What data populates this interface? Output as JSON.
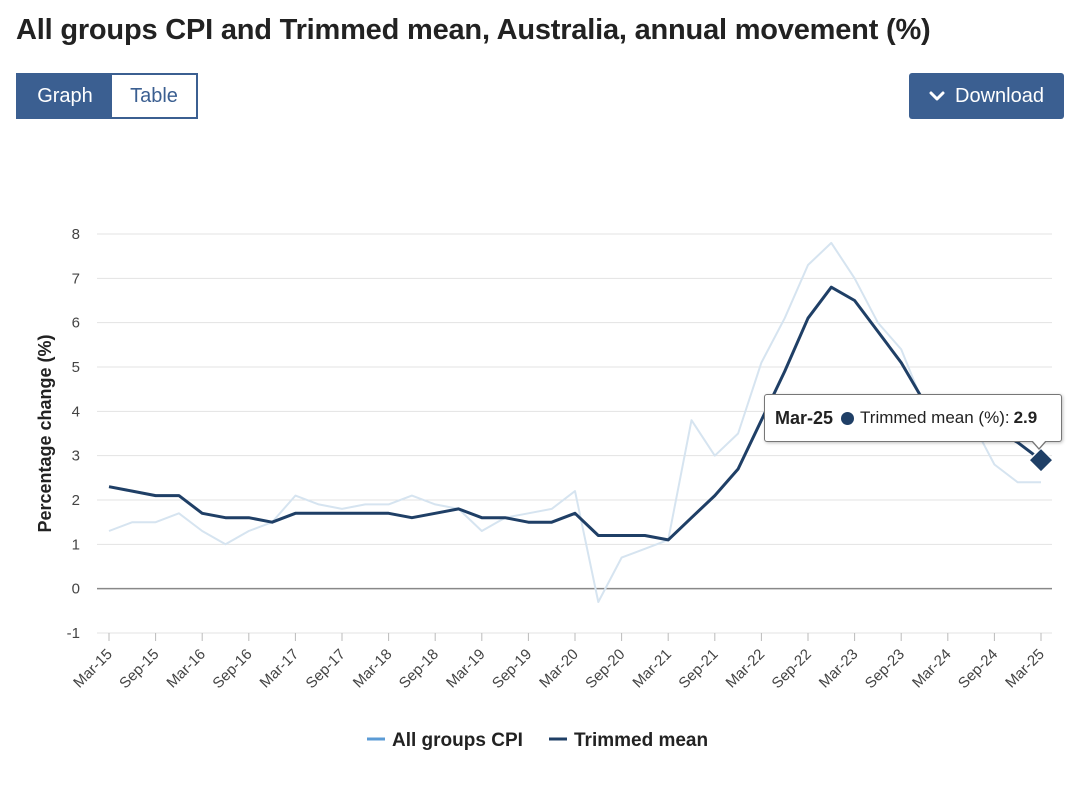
{
  "page": {
    "title": "All groups CPI and Trimmed mean, Australia, annual movement (%)"
  },
  "controls": {
    "graph_label": "Graph",
    "table_label": "Table",
    "download_label": "Download",
    "download_icon": "chevron-down-icon"
  },
  "tooltip": {
    "date": "Mar-25",
    "series": "Trimmed mean (%):",
    "value": "2.9"
  },
  "chart_data": {
    "type": "line",
    "ylabel": "Percentage change (%)",
    "xlabel": "",
    "ylim": [
      -1,
      8
    ],
    "yticks": [
      "8",
      "7",
      "6",
      "5",
      "4",
      "3",
      "2",
      "1",
      "0",
      "-1"
    ],
    "grid": true,
    "legend_position": "bottom",
    "x": [
      "Mar-15",
      "Jun-15",
      "Sep-15",
      "Dec-15",
      "Mar-16",
      "Jun-16",
      "Sep-16",
      "Dec-16",
      "Mar-17",
      "Jun-17",
      "Sep-17",
      "Dec-17",
      "Mar-18",
      "Jun-18",
      "Sep-18",
      "Dec-18",
      "Mar-19",
      "Jun-19",
      "Sep-19",
      "Dec-19",
      "Mar-20",
      "Jun-20",
      "Sep-20",
      "Dec-20",
      "Mar-21",
      "Jun-21",
      "Sep-21",
      "Dec-21",
      "Mar-22",
      "Jun-22",
      "Sep-22",
      "Dec-22",
      "Mar-23",
      "Jun-23",
      "Sep-23",
      "Dec-23",
      "Mar-24",
      "Jun-24",
      "Sep-24",
      "Dec-24",
      "Mar-25"
    ],
    "x_tick_labels": [
      "Mar-15",
      "Sep-15",
      "Mar-16",
      "Sep-16",
      "Mar-17",
      "Sep-17",
      "Mar-18",
      "Sep-18",
      "Mar-19",
      "Sep-19",
      "Mar-20",
      "Sep-20",
      "Mar-21",
      "Sep-21",
      "Mar-22",
      "Sep-22",
      "Mar-23",
      "Sep-23",
      "Mar-24",
      "Sep-24",
      "Mar-25"
    ],
    "series": [
      {
        "name": "All groups CPI",
        "color": "#d6e4f0",
        "legend_color": "#5b9bd5",
        "values": [
          1.3,
          1.5,
          1.5,
          1.7,
          1.3,
          1.0,
          1.3,
          1.5,
          2.1,
          1.9,
          1.8,
          1.9,
          1.9,
          2.1,
          1.9,
          1.8,
          1.3,
          1.6,
          1.7,
          1.8,
          2.2,
          -0.3,
          0.7,
          0.9,
          1.1,
          3.8,
          3.0,
          3.5,
          5.1,
          6.1,
          7.3,
          7.8,
          7.0,
          6.0,
          5.4,
          4.1,
          3.6,
          3.8,
          2.8,
          2.4,
          2.4
        ]
      },
      {
        "name": "Trimmed mean",
        "color": "#1f3f66",
        "legend_color": "#1f3f66",
        "values": [
          2.3,
          2.2,
          2.1,
          2.1,
          1.7,
          1.6,
          1.6,
          1.5,
          1.7,
          1.7,
          1.7,
          1.7,
          1.7,
          1.6,
          1.7,
          1.8,
          1.6,
          1.6,
          1.5,
          1.5,
          1.7,
          1.2,
          1.2,
          1.2,
          1.1,
          1.6,
          2.1,
          2.7,
          3.8,
          4.9,
          6.1,
          6.8,
          6.5,
          5.8,
          5.1,
          4.2,
          4.0,
          4.0,
          3.6,
          3.3,
          2.9
        ]
      }
    ],
    "highlight": {
      "series": "Trimmed mean",
      "x": "Mar-25",
      "value": 2.9
    }
  }
}
